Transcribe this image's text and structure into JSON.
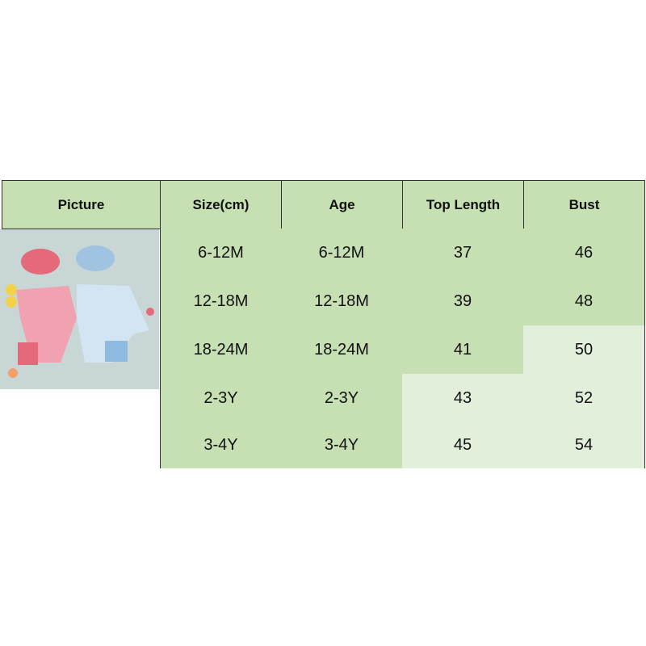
{
  "table": {
    "headers": [
      "Picture",
      "Size(cm)",
      "Age",
      "Top Length",
      "Bust"
    ],
    "rows": [
      [
        "6-12M",
        "6-12M",
        "37",
        "46"
      ],
      [
        "12-18M",
        "12-18M",
        "39",
        "48"
      ],
      [
        "18-24M",
        "18-24M",
        "41",
        "50"
      ],
      [
        "2-3Y",
        "2-3Y",
        "43",
        "52"
      ],
      [
        "3-4Y",
        "3-4Y",
        "45",
        "54"
      ]
    ],
    "shading": [
      [
        "dark",
        "dark",
        "dark",
        "dark"
      ],
      [
        "dark",
        "dark",
        "dark",
        "dark"
      ],
      [
        "dark",
        "dark",
        "dark",
        "light"
      ],
      [
        "dark",
        "dark",
        "light",
        "light"
      ],
      [
        "dark",
        "dark",
        "light",
        "light"
      ]
    ]
  },
  "colors": {
    "header_bg": "#c6e0b4",
    "cell_dark": "#c6e0b4",
    "cell_light": "#e2efda"
  },
  "picture": {
    "icon": "product-photo-baby-swimsuits-with-hats"
  }
}
